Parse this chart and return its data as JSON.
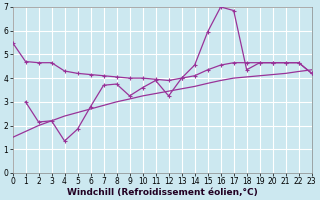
{
  "background_color": "#cce8f0",
  "grid_color": "#aacccc",
  "line_color": "#993399",
  "x_min": 0,
  "x_max": 23,
  "y_min": 0,
  "y_max": 7,
  "xlabel": "Windchill (Refroidissement éolien,°C)",
  "xlabel_fontsize": 6.5,
  "tick_fontsize": 5.5,
  "line1_x": [
    0,
    1,
    2,
    3,
    4,
    5,
    6,
    7,
    8,
    9,
    10,
    11,
    12,
    13,
    14,
    15,
    16,
    17,
    18,
    19,
    20,
    21,
    22,
    23
  ],
  "line1_y": [
    5.5,
    4.7,
    4.65,
    4.65,
    4.3,
    4.2,
    4.15,
    4.1,
    4.05,
    4.0,
    4.0,
    3.95,
    3.9,
    4.0,
    4.1,
    4.35,
    4.55,
    4.65,
    4.65,
    4.65,
    4.65,
    4.65,
    4.65,
    4.2
  ],
  "line2_x": [
    1,
    2,
    3,
    4,
    5,
    6,
    7,
    8,
    9,
    10,
    11,
    12,
    13,
    14,
    15,
    16,
    17,
    18,
    19,
    20,
    21,
    22,
    23
  ],
  "line2_y": [
    3.0,
    2.15,
    2.2,
    1.35,
    1.85,
    2.8,
    3.7,
    3.75,
    3.25,
    3.6,
    3.9,
    3.25,
    4.0,
    4.55,
    5.95,
    7.0,
    6.85,
    4.35,
    4.65,
    4.65,
    4.65,
    4.65,
    4.2
  ],
  "line3_x": [
    0,
    1,
    2,
    3,
    4,
    5,
    6,
    7,
    8,
    9,
    10,
    11,
    12,
    13,
    14,
    15,
    16,
    17,
    18,
    19,
    20,
    21,
    22,
    23
  ],
  "line3_y": [
    1.5,
    1.75,
    2.0,
    2.2,
    2.4,
    2.55,
    2.7,
    2.85,
    3.0,
    3.12,
    3.25,
    3.35,
    3.45,
    3.55,
    3.65,
    3.78,
    3.9,
    4.0,
    4.05,
    4.1,
    4.15,
    4.2,
    4.28,
    4.35
  ]
}
